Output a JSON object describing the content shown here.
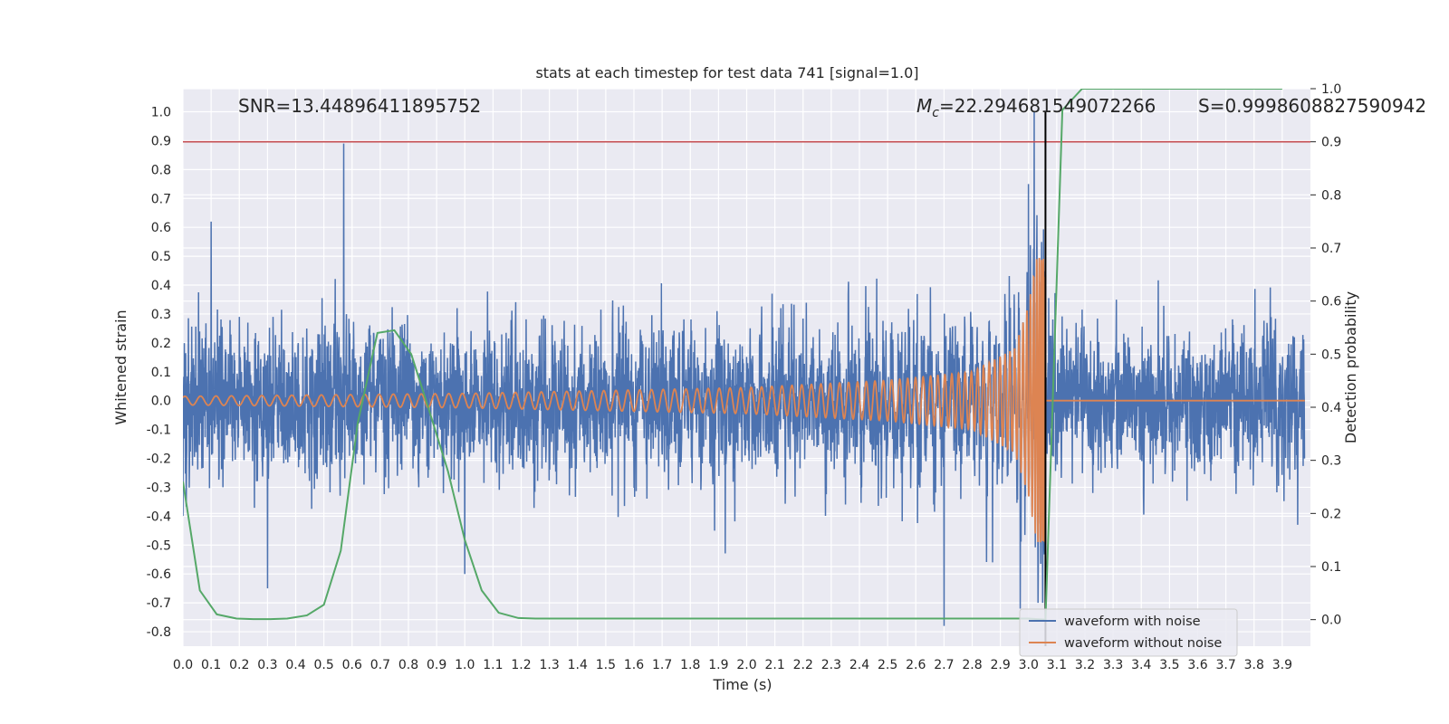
{
  "chart_data": {
    "type": "line",
    "title": "stats at each timestep for test data 741 [signal=1.0]",
    "xlabel": "Time (s)",
    "ylabel_left": "Whitened strain",
    "ylabel_right": "Detection probability",
    "xlim": [
      0.0,
      4.0
    ],
    "ylim_left": [
      -0.85,
      1.08
    ],
    "ylim_right": [
      -0.05,
      1.0
    ],
    "x_ticks": [
      "0.0",
      "0.1",
      "0.2",
      "0.3",
      "0.4",
      "0.5",
      "0.6",
      "0.7",
      "0.8",
      "0.9",
      "1.0",
      "1.1",
      "1.2",
      "1.3",
      "1.4",
      "1.5",
      "1.6",
      "1.7",
      "1.8",
      "1.9",
      "2.0",
      "2.1",
      "2.2",
      "2.3",
      "2.4",
      "2.5",
      "2.6",
      "2.7",
      "2.8",
      "2.9",
      "3.0",
      "3.1",
      "3.2",
      "3.3",
      "3.4",
      "3.5",
      "3.6",
      "3.7",
      "3.8",
      "3.9"
    ],
    "y_left_ticks": [
      "1.0",
      "0.9",
      "0.8",
      "0.7",
      "0.6",
      "0.5",
      "0.4",
      "0.3",
      "0.2",
      "0.1",
      "0.0",
      "-0.1",
      "-0.2",
      "-0.3",
      "-0.4",
      "-0.5",
      "-0.6",
      "-0.7",
      "-0.8"
    ],
    "y_right_ticks": [
      "1.0",
      "0.9",
      "0.8",
      "0.7",
      "0.6",
      "0.5",
      "0.4",
      "0.3",
      "0.2",
      "0.1",
      "0.0"
    ],
    "grid": true,
    "legend_position": "lower-right",
    "annotations": {
      "snr": "SNR=13.44896411895752",
      "mc_symbol": "M",
      "mc_subscript": "c",
      "mc_value": "=22.294681549072266",
      "s": "S=0.9998608827590942"
    },
    "threshold_line": {
      "axis": "right",
      "y": 0.9,
      "color": "#c44e52"
    },
    "merger_line": {
      "x": 3.06,
      "color": "#000000"
    },
    "series": [
      {
        "name": "waveform with noise",
        "axis": "left",
        "color": "#4c72b0",
        "peaks": [
          [
            0.57,
            0.89
          ],
          [
            3.02,
            1.0
          ],
          [
            3.0,
            0.75
          ],
          [
            2.7,
            -0.78
          ],
          [
            2.97,
            -0.72
          ],
          [
            0.3,
            -0.65
          ],
          [
            0.1,
            0.62
          ],
          [
            1.0,
            -0.6
          ]
        ]
      },
      {
        "name": "waveform without noise",
        "axis": "left",
        "color": "#dd8452",
        "envelope": [
          [
            0.0,
            0.015
          ],
          [
            1.0,
            0.025
          ],
          [
            2.0,
            0.045
          ],
          [
            2.5,
            0.07
          ],
          [
            2.8,
            0.1
          ],
          [
            2.95,
            0.18
          ],
          [
            3.0,
            0.33
          ],
          [
            3.03,
            0.5
          ],
          [
            3.06,
            0.0
          ],
          [
            4.0,
            0.0
          ]
        ]
      },
      {
        "name": "detection probability",
        "axis": "right",
        "color": "#55a868",
        "x": [
          0.0,
          0.06,
          0.12,
          0.19,
          0.25,
          0.31,
          0.37,
          0.44,
          0.5,
          0.56,
          0.62,
          0.69,
          0.75,
          0.81,
          0.87,
          0.94,
          1.0,
          1.06,
          1.12,
          1.19,
          1.25,
          2.7,
          3.0,
          3.06,
          3.12,
          3.19,
          3.25,
          3.9
        ],
        "y": [
          0.26,
          0.055,
          0.01,
          0.002,
          0.001,
          0.001,
          0.002,
          0.008,
          0.028,
          0.13,
          0.37,
          0.54,
          0.545,
          0.5,
          0.4,
          0.28,
          0.15,
          0.055,
          0.013,
          0.003,
          0.002,
          0.002,
          0.002,
          0.0,
          0.96,
          1.0,
          1.0,
          1.0
        ]
      }
    ]
  }
}
